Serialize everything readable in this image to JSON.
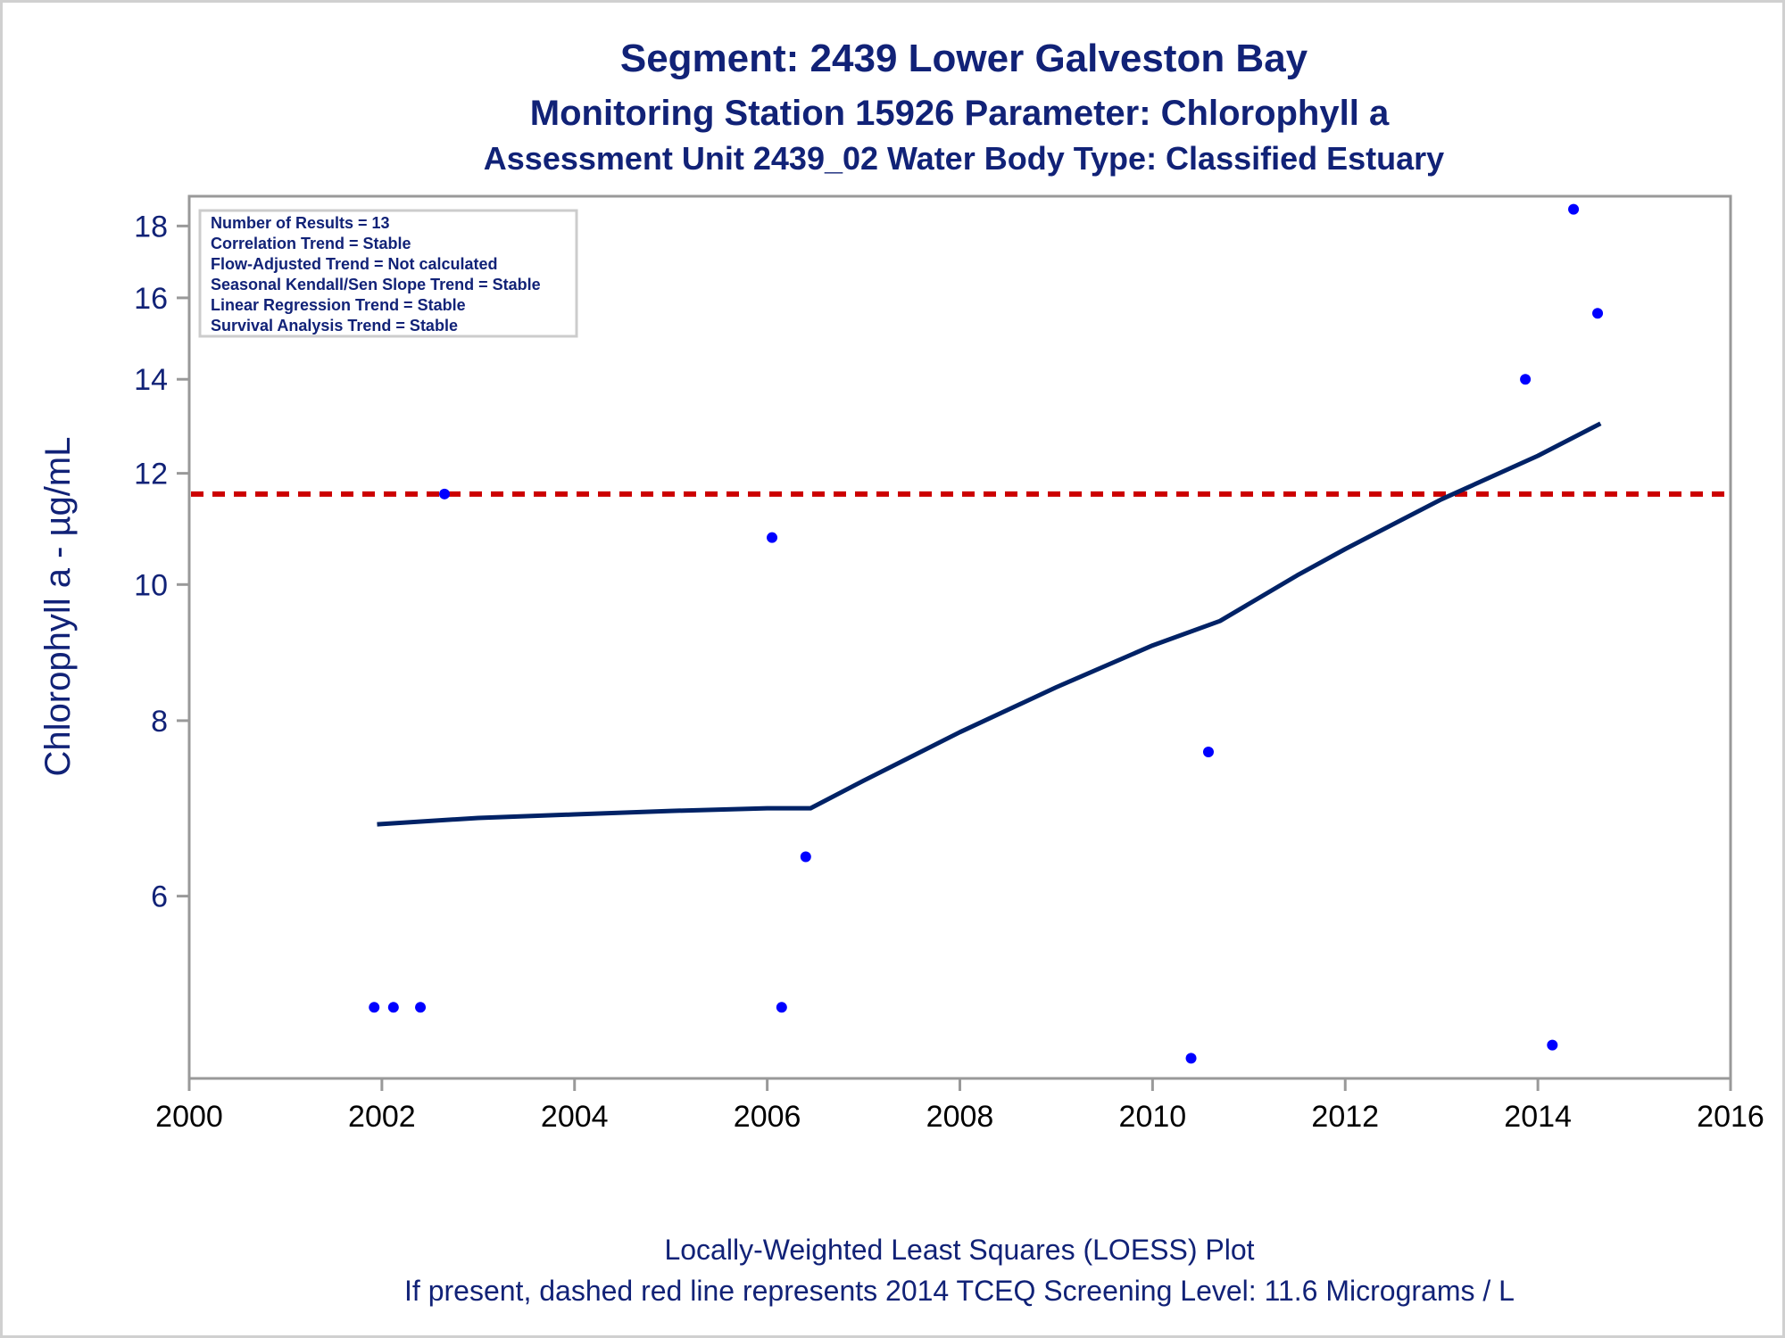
{
  "chart_data": {
    "type": "scatter",
    "title": "Segment: 2439  Lower Galveston Bay",
    "subtitle": "Monitoring Station 15926 Parameter: Chlorophyll a",
    "subtitle2": "Assessment Unit 2439_02   Water Body Type: Classified Estuary",
    "ylabel": "Chlorophyll a -  µg/mL",
    "xlabel": "",
    "y_scale": "log",
    "xlim": [
      2000,
      2016
    ],
    "ylim": [
      4.45,
      18.9
    ],
    "x_ticks": [
      2000,
      2002,
      2004,
      2006,
      2008,
      2010,
      2012,
      2014,
      2016
    ],
    "y_ticks": [
      6,
      8,
      10,
      12,
      14,
      16,
      18
    ],
    "grid": false,
    "legend": "none",
    "stats_box": {
      "position": "top-left",
      "lines": [
        "Number of Results = 13",
        "Correlation Trend = Stable",
        "Flow-Adjusted Trend = Not calculated",
        "Seasonal Kendall/Sen Slope Trend = Stable",
        "Linear Regression Trend = Stable",
        "Survival Analysis Trend = Stable"
      ]
    },
    "points": [
      {
        "x": 2001.92,
        "y": 5.0
      },
      {
        "x": 2002.12,
        "y": 5.0
      },
      {
        "x": 2002.4,
        "y": 5.0
      },
      {
        "x": 2002.65,
        "y": 11.6
      },
      {
        "x": 2006.05,
        "y": 10.8
      },
      {
        "x": 2006.15,
        "y": 5.0
      },
      {
        "x": 2006.4,
        "y": 6.4
      },
      {
        "x": 2010.4,
        "y": 4.6
      },
      {
        "x": 2010.58,
        "y": 7.6
      },
      {
        "x": 2013.87,
        "y": 14.0
      },
      {
        "x": 2014.15,
        "y": 4.7
      },
      {
        "x": 2014.37,
        "y": 18.5
      },
      {
        "x": 2014.62,
        "y": 15.6
      }
    ],
    "loess": {
      "x": [
        2001.95,
        2003.0,
        2004.0,
        2005.0,
        2006.0,
        2006.45,
        2007.0,
        2008.0,
        2009.0,
        2010.0,
        2010.7,
        2011.5,
        2012.0,
        2013.0,
        2014.0,
        2014.65
      ],
      "y": [
        6.75,
        6.82,
        6.86,
        6.9,
        6.93,
        6.93,
        7.25,
        7.85,
        8.45,
        9.05,
        9.42,
        10.15,
        10.6,
        11.5,
        12.35,
        13.02
      ]
    },
    "screening_level": 11.6,
    "colors": {
      "title": "#112277",
      "points": "#0000ff",
      "loess": "#002266",
      "screening_line": "#cc0000",
      "axis": "#999999"
    }
  },
  "footnote": {
    "line1": "Locally-Weighted Least Squares (LOESS) Plot",
    "line2": "If present, dashed red line represents 2014 TCEQ Screening Level: 11.6 Micrograms / L"
  }
}
